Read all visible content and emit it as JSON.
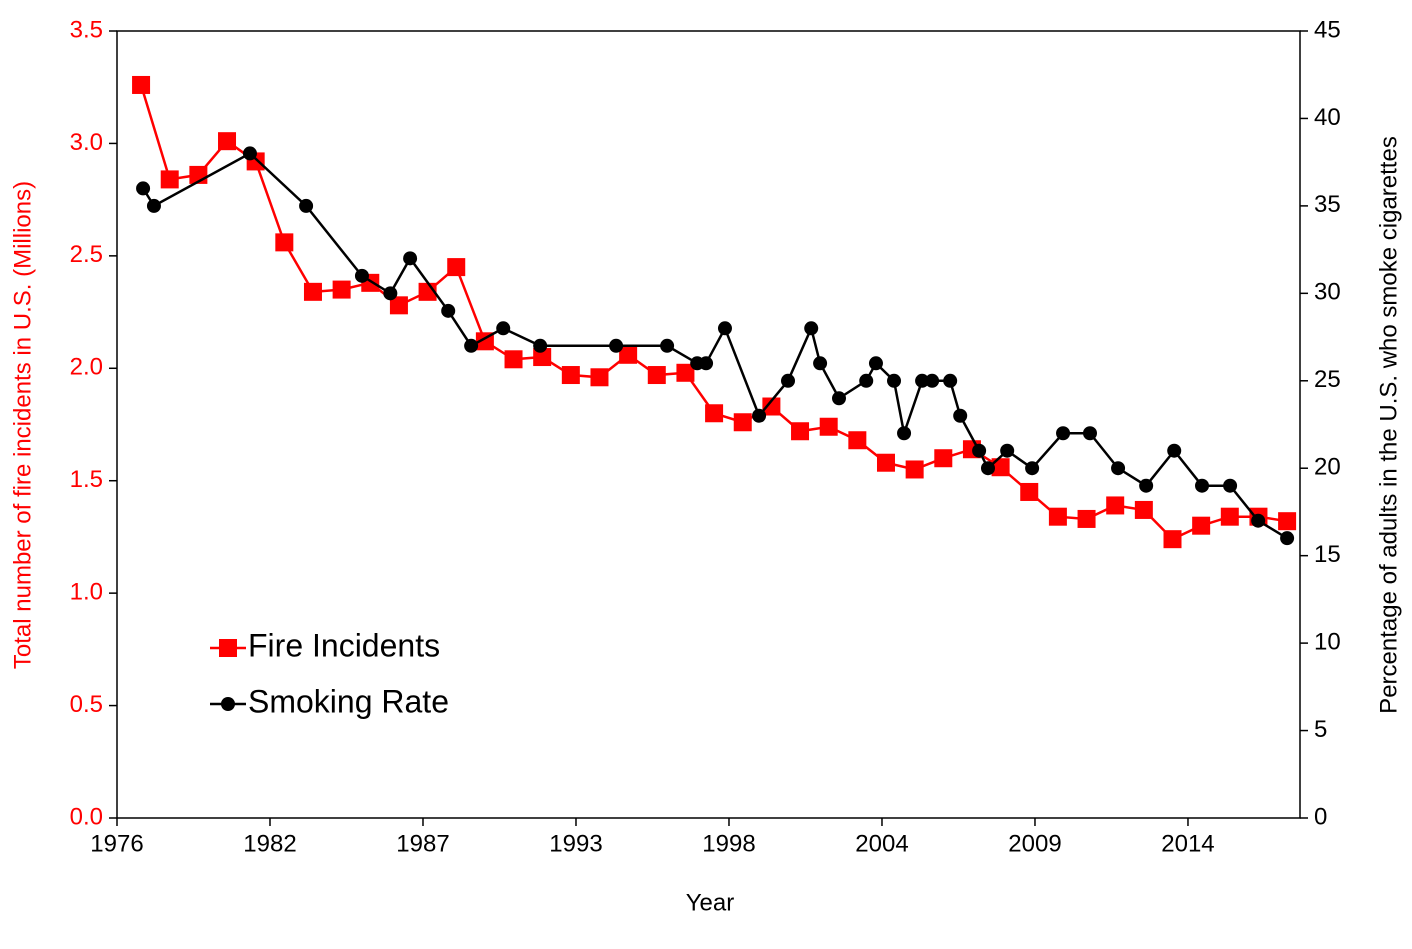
{
  "chart_data": {
    "type": "line",
    "x_label": "Year",
    "y_label": "Total number of fire incidents in U.S. (Millions)",
    "y2_label": "Percentage of adults in the U.S. who smoke cigarettes",
    "xlim": [
      1976.16,
      2017.45
    ],
    "xticks": [
      {
        "value": 1976.16,
        "label": "1976"
      },
      {
        "value": 1981.5,
        "label": "1982"
      },
      {
        "value": 1986.84,
        "label": "1987"
      },
      {
        "value": 1992.18,
        "label": "1993"
      },
      {
        "value": 1997.52,
        "label": "1998"
      },
      {
        "value": 2002.86,
        "label": "2004"
      },
      {
        "value": 2008.2,
        "label": "2009"
      },
      {
        "value": 2013.54,
        "label": "2014"
      }
    ],
    "ylim": [
      0,
      3.5
    ],
    "yticks": [
      {
        "value": 0,
        "label": "0.0"
      },
      0.5,
      {
        "value": 1,
        "label": "1.0"
      },
      1.5,
      {
        "value": 2,
        "label": "2.0"
      },
      2.5,
      {
        "value": 3,
        "label": "3.0"
      },
      3.5
    ],
    "y2lim": [
      0,
      45
    ],
    "y2ticks": [
      0,
      5,
      10,
      15,
      20,
      25,
      30,
      35,
      40,
      45
    ],
    "legend": "lower left",
    "series": [
      {
        "name": "Fire Incidents",
        "color": "#ff0000",
        "marker": "square",
        "x": [
          1977,
          1978,
          1979,
          1980,
          1981,
          1982,
          1983,
          1984,
          1985,
          1986,
          1987,
          1988,
          1989,
          1990,
          1991,
          1992,
          1993,
          1994,
          1995,
          1996,
          1997,
          1998,
          1999,
          2000,
          2001,
          2002,
          2003,
          2004,
          2005,
          2006,
          2007,
          2008,
          2009,
          2010,
          2011,
          2012,
          2013,
          2014,
          2015,
          2016,
          2017
        ],
        "values": [
          3.26,
          2.84,
          2.86,
          3.01,
          2.92,
          2.56,
          2.34,
          2.35,
          2.38,
          2.28,
          2.34,
          2.45,
          2.12,
          2.04,
          2.05,
          1.97,
          1.96,
          2.06,
          1.97,
          1.98,
          1.8,
          1.76,
          1.83,
          1.72,
          1.74,
          1.68,
          1.58,
          1.55,
          1.6,
          1.64,
          1.56,
          1.45,
          1.34,
          1.33,
          1.39,
          1.37,
          1.24,
          1.3,
          1.34,
          1.34,
          1.32
        ]
      },
      {
        "name": "Smoking Rate",
        "color": "#000000",
        "marker": "circle",
        "axis": "y2",
        "x": [
          1977.07,
          1977.45,
          1980.8,
          1982.76,
          1984.71,
          1985.7,
          1986.39,
          1987.72,
          1988.52,
          1989.64,
          1990.93,
          1993.58,
          1995.36,
          1996.41,
          1996.72,
          1997.38,
          1998.57,
          1999.58,
          2000.39,
          2000.7,
          2001.36,
          2002.31,
          2002.65,
          2003.28,
          2003.63,
          2004.26,
          2004.61,
          2005.24,
          2005.59,
          2006.25,
          2006.56,
          2007.23,
          2008.1,
          2009.18,
          2010.12,
          2011.1,
          2012.08,
          2013.06,
          2014.03,
          2015.01,
          2015.99,
          2017.0
        ],
        "values": [
          36,
          35,
          38,
          35,
          31,
          30,
          32,
          29,
          27,
          28,
          27,
          27,
          27,
          26,
          26,
          28,
          23,
          25,
          28,
          26,
          24,
          25,
          26,
          25,
          22,
          25,
          25,
          25,
          23,
          21,
          20,
          21,
          20,
          22,
          22,
          20,
          19,
          21,
          19,
          19,
          17,
          16
        ]
      }
    ]
  }
}
